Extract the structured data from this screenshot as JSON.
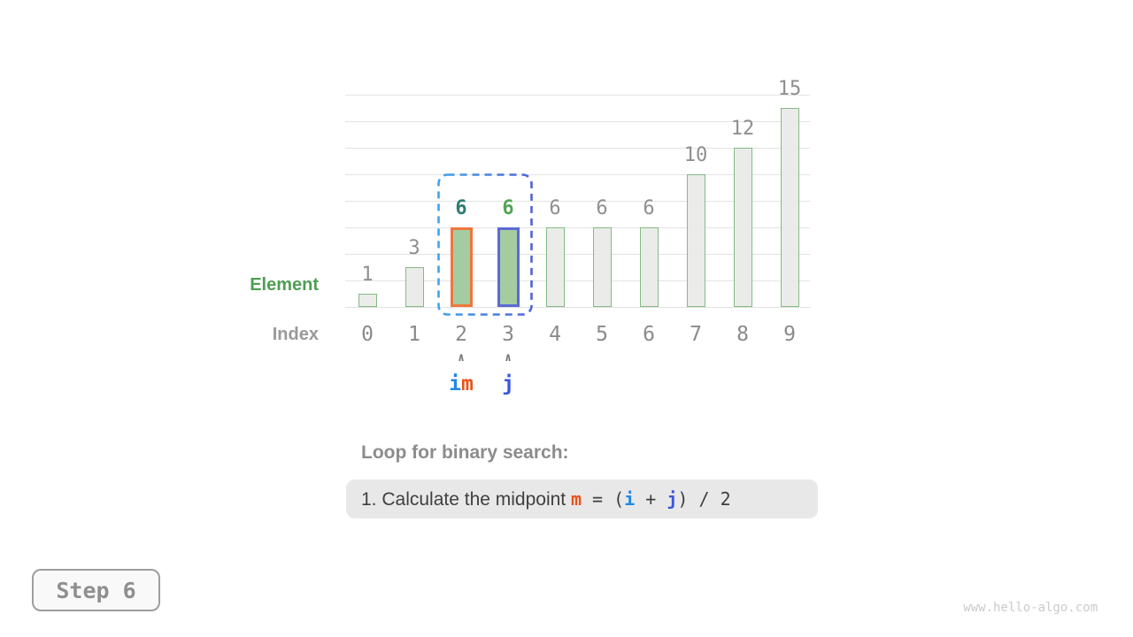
{
  "chart_data": {
    "type": "bar",
    "categories": [
      "0",
      "1",
      "2",
      "3",
      "4",
      "5",
      "6",
      "7",
      "8",
      "9"
    ],
    "values": [
      1,
      3,
      6,
      6,
      6,
      6,
      6,
      10,
      12,
      15
    ],
    "bar_labels": [
      "1",
      "3",
      "6",
      "6",
      "6",
      "6",
      "6",
      "10",
      "12",
      "15"
    ],
    "xlabel": "Index",
    "ylabel": "Element",
    "ylim": [
      0,
      16
    ],
    "grid_step": 2,
    "grid": true,
    "legend": "none",
    "highlights": {
      "2": "orange",
      "3": "blue"
    },
    "value_label_colors": {
      "2": "teal",
      "3": "green"
    },
    "search_range_columns": [
      2,
      3
    ]
  },
  "axes": {
    "element_label": "Element",
    "index_label": "Index"
  },
  "pointers": [
    {
      "column": 2,
      "caret": "∧",
      "parts": [
        {
          "text": "i",
          "cls": "i"
        },
        {
          "text": "m",
          "cls": "m"
        }
      ]
    },
    {
      "column": 3,
      "caret": "∧",
      "parts": [
        {
          "text": "j",
          "cls": "j"
        }
      ]
    }
  ],
  "caption": {
    "text": "Loop for binary search:"
  },
  "equation": {
    "segments": [
      {
        "text": "1. Calculate the midpoint ",
        "cls": "sans"
      },
      {
        "text": "m",
        "cls": "m"
      },
      {
        "text": " = (",
        "cls": "mono"
      },
      {
        "text": "i",
        "cls": "i"
      },
      {
        "text": " + ",
        "cls": "mono"
      },
      {
        "text": "j",
        "cls": "j"
      },
      {
        "text": ") / 2",
        "cls": "mono"
      }
    ]
  },
  "step": {
    "label": "Step 6"
  },
  "watermark": "www.hello-algo.com",
  "colors": {
    "bar_fill": "#e9ebe8",
    "bar_border": "#84ba84",
    "highlight_fill": "#a5cba1",
    "highlight_orange_border": "#f0763c",
    "highlight_blue_border": "#5b6ad4",
    "search_range_gradient_start": "#3fa3ea",
    "search_range_gradient_end": "#4e62d6",
    "pointer_i": "#1e88e5",
    "pointer_m": "#e8531a",
    "pointer_j": "#3a57de",
    "value_label_teal": "#2e7d72",
    "value_label_green": "#55a556",
    "element_label_green": "#4f9e53",
    "gray_text": "#8f8f8f"
  }
}
